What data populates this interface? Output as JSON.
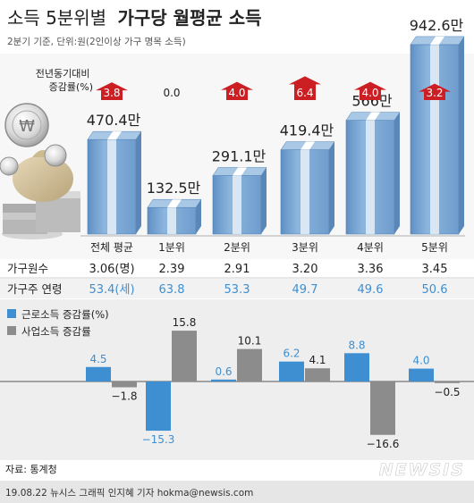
{
  "header": {
    "title_light": "소득 5분위별",
    "title_bold": "가구당 월평균 소득",
    "subtitle": "2분기 기준, 단위:원(2인이상 가구 명목 소득)"
  },
  "colors": {
    "bar_blue": "#7da9d4",
    "bar_blue_dark": "#4f7fb3",
    "arrow_red": "#cc1f24",
    "label_blue": "#3e8fd1",
    "business_gray": "#8c8c8c",
    "panel_bg": "#eeeeee",
    "illustration": "coins-and-money-bag"
  },
  "income_chart": {
    "change_label": "전년동기대비\n증감률(%)",
    "groups": [
      {
        "label": "전체 평균",
        "income_label": "470.4만",
        "income": 470.4,
        "change_label": "3.8",
        "change": 3.8
      },
      {
        "label": "1분위",
        "income_label": "132.5만",
        "income": 132.5,
        "change_label": "0.0",
        "change": 0.0
      },
      {
        "label": "2분위",
        "income_label": "291.1만",
        "income": 291.1,
        "change_label": "4.0",
        "change": 4.0
      },
      {
        "label": "3분위",
        "income_label": "419.4만",
        "income": 419.4,
        "change_label": "6.4",
        "change": 6.4
      },
      {
        "label": "4분위",
        "income_label": "566만",
        "income": 566.0,
        "change_label": "4.0",
        "change": 4.0
      },
      {
        "label": "5분위",
        "income_label": "942.6만",
        "income": 942.6,
        "change_label": "3.2",
        "change": 3.2
      }
    ]
  },
  "table": {
    "household_label": "가구원수",
    "household_values": [
      "3.06(명)",
      "2.39",
      "2.91",
      "3.20",
      "3.36",
      "3.45"
    ],
    "age_label": "가구주 연령",
    "age_values": [
      "53.4(세)",
      "63.8",
      "53.3",
      "49.7",
      "49.6",
      "50.6"
    ]
  },
  "chart_data": {
    "type": "bar",
    "title": "",
    "categories": [
      "전체 평균",
      "1분위",
      "2분위",
      "3분위",
      "4분위",
      "5분위"
    ],
    "series": [
      {
        "name": "근로소득 증감률(%)",
        "values": [
          4.5,
          -15.3,
          0.6,
          6.2,
          8.8,
          4.0
        ],
        "labels": [
          "4.5",
          "−15.3",
          "0.6",
          "6.2",
          "8.8",
          "4.0"
        ]
      },
      {
        "name": "사업소득 증감률",
        "values": [
          -1.8,
          15.8,
          10.1,
          4.1,
          -16.6,
          -0.5
        ],
        "labels": [
          "−1.8",
          "15.8",
          "10.1",
          "4.1",
          "−16.6",
          "−0.5"
        ]
      }
    ],
    "xlabel": "",
    "ylabel": "",
    "ylim": [
      -16.6,
      15.8
    ],
    "legend": "top-left"
  },
  "footer": {
    "source": "자료: 통계청",
    "credit": "19.08.22 뉴시스 그래픽 인지혜 기자 hokma@newsis.com",
    "brand": "NEWSIS"
  }
}
